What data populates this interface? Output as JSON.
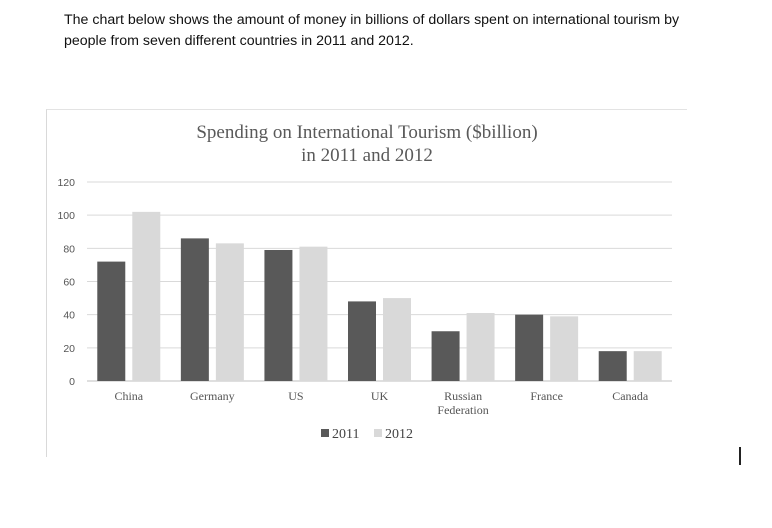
{
  "intro_text": "The chart below shows the amount of money in billions of dollars spent on international tourism by people from seven different countries in 2011 and 2012.",
  "colors": {
    "series_2011": "#595959",
    "series_2012": "#d9d9d9",
    "grid": "#d9d9d9",
    "axis": "#bfbfbf"
  },
  "chart_data": {
    "type": "bar",
    "title": [
      "Spending on International Tourism ($billion)",
      "in 2011 and 2012"
    ],
    "categories": [
      [
        "China"
      ],
      [
        "Germany"
      ],
      [
        "US"
      ],
      [
        "UK"
      ],
      [
        "Russian",
        "Federation"
      ],
      [
        "France"
      ],
      [
        "Canada"
      ]
    ],
    "series": [
      {
        "name": "2011",
        "values": [
          72,
          86,
          79,
          48,
          30,
          40,
          18
        ]
      },
      {
        "name": "2012",
        "values": [
          102,
          83,
          81,
          50,
          41,
          39,
          18
        ]
      }
    ],
    "ylim": [
      0,
      120
    ],
    "yticks": [
      0,
      20,
      40,
      60,
      80,
      100,
      120
    ],
    "grid": true,
    "legend_position": "bottom"
  }
}
